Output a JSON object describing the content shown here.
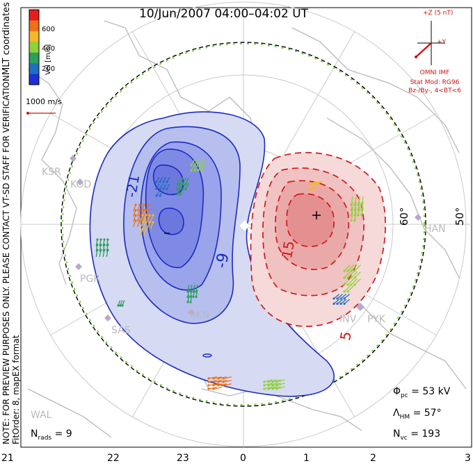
{
  "title": "10/Jun/2007 04:00–04:02 UT",
  "coords_label": "MLT coordinates",
  "colorbar": {
    "label": "Vel [m/s]",
    "ticks": [
      "600",
      "400",
      "200"
    ],
    "colors": [
      "#e51d1d",
      "#f07015",
      "#f5b82a",
      "#8fd13a",
      "#2e9e5c",
      "#1f6fc0",
      "#1c2fd8"
    ]
  },
  "scale_label": "1000 m/s",
  "notes": {
    "preview": "NOTE: FOR PREVIEW PURPOSES ONLY. PLEASE CONTACT VT-SD STAFF FOR VERIFICATION.",
    "fit": "FitOrder: 8,  mapEX format"
  },
  "imf": {
    "axis_label": "+Z (5 nT)",
    "y_label": "+Y",
    "source": "OMNI IMF",
    "model": "Stat Mod: RG96",
    "condition": "Bz-/By-, 4<BT<6"
  },
  "latitude_labels": [
    "60°",
    "50°"
  ],
  "sites": [
    "KSR",
    "KOD",
    "PGR",
    "SAS",
    "RKN",
    "INV",
    "PYK",
    "HAN",
    "WAL"
  ],
  "contour_labels": [
    "-21",
    "-9",
    "15",
    "5"
  ],
  "mlt_ticks": [
    "21",
    "22",
    "23",
    "0",
    "1",
    "2",
    "3"
  ],
  "stats": {
    "phi_label": "Φ",
    "phi_sub": "pc",
    "phi_value": "= 53 kV",
    "lambda_label": "Λ",
    "lambda_sub": "HM",
    "lambda_value": "= 57°",
    "nvc_label": "N",
    "nvc_sub": "vc",
    "nvc_value": "= 193",
    "nrads_label": "N",
    "nrads_sub": "rads",
    "nrads_value": "= 9"
  },
  "colors": {
    "negative_cell": "#2a3fd0",
    "positive_cell": "#d01818",
    "boundary_green": "#7dd13a",
    "coast": "#b8b8b8"
  }
}
